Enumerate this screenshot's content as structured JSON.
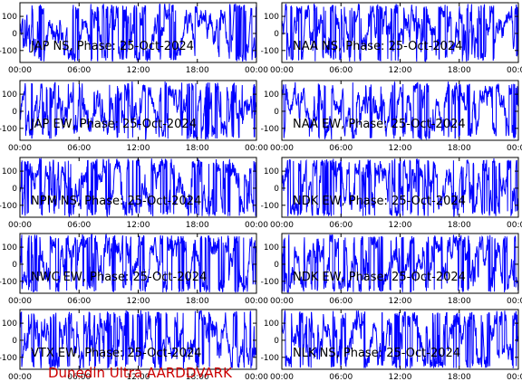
{
  "footer": "Dunedin Ultra AARDDVARK",
  "colors": {
    "trace": "#0000ff",
    "axes": "#000000",
    "footer": "#cc0000",
    "background": "#ffffff"
  },
  "chart_data": [
    {
      "type": "line",
      "title": "JAP NS, Phase: 25-Oct-2024",
      "xticks": [
        "00:00",
        "06:00",
        "12:00",
        "18:00",
        "00:00"
      ],
      "yticks": [
        100,
        0,
        -100
      ],
      "xlim": [
        0,
        24
      ],
      "ylim": [
        -170,
        180
      ],
      "grid": false,
      "legend": "none",
      "series": [
        {
          "values_description": "dense phase trace spanning most of the range"
        }
      ]
    },
    {
      "type": "line",
      "title": "NAA NS, Phase: 25-Oct-2024",
      "xticks": [
        "00:00",
        "06:00",
        "12:00",
        "18:00",
        "00:00"
      ],
      "yticks": [
        100,
        0,
        -100
      ],
      "xlim": [
        0,
        24
      ],
      "ylim": [
        -170,
        180
      ],
      "grid": false,
      "legend": "none"
    },
    {
      "type": "line",
      "title": "JAP EW, Phase: 25-Oct-2024",
      "xticks": [
        "00:00",
        "06:00",
        "12:00",
        "18:00",
        "00:00"
      ],
      "yticks": [
        100,
        0,
        -100
      ],
      "xlim": [
        0,
        24
      ],
      "ylim": [
        -170,
        180
      ],
      "grid": false,
      "legend": "none"
    },
    {
      "type": "line",
      "title": "NAA EW, Phase: 25-Oct-2024",
      "xticks": [
        "00:00",
        "06:00",
        "12:00",
        "18:00",
        "00:00"
      ],
      "yticks": [
        100,
        0,
        -100
      ],
      "xlim": [
        0,
        24
      ],
      "ylim": [
        -170,
        180
      ],
      "grid": false,
      "legend": "none"
    },
    {
      "type": "line",
      "title": "NPM NS, Phase: 25-Oct-2024",
      "xticks": [
        "00:00",
        "06:00",
        "12:00",
        "18:00",
        "00:00"
      ],
      "yticks": [
        100,
        0,
        -100
      ],
      "xlim": [
        0,
        24
      ],
      "ylim": [
        -170,
        180
      ],
      "grid": false,
      "legend": "none"
    },
    {
      "type": "line",
      "title": "NDK EW, Phase: 25-Oct-2024",
      "xticks": [
        "00:00",
        "06:00",
        "12:00",
        "18:00",
        "00:00"
      ],
      "yticks": [
        100,
        0,
        -100
      ],
      "xlim": [
        0,
        24
      ],
      "ylim": [
        -170,
        180
      ],
      "grid": false,
      "legend": "none"
    },
    {
      "type": "line",
      "title": "NWC EW, Phase: 25-Oct-2024",
      "xticks": [
        "00:00",
        "06:00",
        "12:00",
        "18:00",
        "00:00"
      ],
      "yticks": [
        100,
        0,
        -100
      ],
      "xlim": [
        0,
        24
      ],
      "ylim": [
        -170,
        180
      ],
      "grid": false,
      "legend": "none"
    },
    {
      "type": "line",
      "title": "NDK EW, Phase: 25-Oct-2024",
      "xticks": [
        "00:00",
        "06:00",
        "12:00",
        "18:00",
        "00:00"
      ],
      "yticks": [
        100,
        0,
        -100
      ],
      "xlim": [
        0,
        24
      ],
      "ylim": [
        -170,
        180
      ],
      "grid": false,
      "legend": "none"
    },
    {
      "type": "line",
      "title": "VTX EW, Phase: 25-Oct-2024",
      "xticks": [
        "00:00",
        "06:00",
        "12:00",
        "18:00",
        "00:00"
      ],
      "yticks": [
        100,
        0,
        -100
      ],
      "xlim": [
        0,
        24
      ],
      "ylim": [
        -170,
        180
      ],
      "grid": false,
      "legend": "none"
    },
    {
      "type": "line",
      "title": "NLK NS, Phase: 25-Oct-2024",
      "xticks": [
        "00:00",
        "06:00",
        "12:00",
        "18:00",
        "00:00"
      ],
      "yticks": [
        100,
        0,
        -100
      ],
      "xlim": [
        0,
        24
      ],
      "ylim": [
        -170,
        180
      ],
      "grid": false,
      "legend": "none"
    }
  ]
}
